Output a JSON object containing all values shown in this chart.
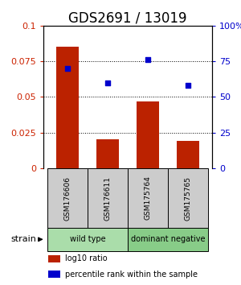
{
  "title": "GDS2691 / 13019",
  "bar_values": [
    0.085,
    0.02,
    0.047,
    0.019
  ],
  "percentile_values": [
    70,
    60,
    76,
    58
  ],
  "x_labels": [
    "GSM176606",
    "GSM176611",
    "GSM175764",
    "GSM175765"
  ],
  "groups": [
    {
      "label": "wild type",
      "indices": [
        0,
        1
      ],
      "color": "#aaddaa"
    },
    {
      "label": "dominant negative",
      "indices": [
        2,
        3
      ],
      "color": "#88cc88"
    }
  ],
  "bar_color": "#bb2200",
  "dot_color": "#0000cc",
  "ylim_left": [
    0,
    0.1
  ],
  "ylim_right": [
    0,
    100
  ],
  "yticks_left": [
    0,
    0.025,
    0.05,
    0.075,
    0.1
  ],
  "ytick_labels_left": [
    "0",
    "0.025",
    "0.05",
    "0.075",
    "0.1"
  ],
  "yticks_right": [
    0,
    25,
    50,
    75,
    100
  ],
  "ytick_labels_right": [
    "0",
    "25",
    "50",
    "75",
    "100%"
  ],
  "left_axis_color": "#cc2200",
  "right_axis_color": "#0000cc",
  "bar_width": 0.55,
  "legend_items": [
    {
      "color": "#bb2200",
      "label": "log10 ratio"
    },
    {
      "color": "#0000cc",
      "label": "percentile rank within the sample"
    }
  ],
  "strain_label": "strain",
  "sample_box_color": "#cccccc",
  "title_fontsize": 12,
  "tick_fontsize": 8,
  "label_fontsize": 8
}
